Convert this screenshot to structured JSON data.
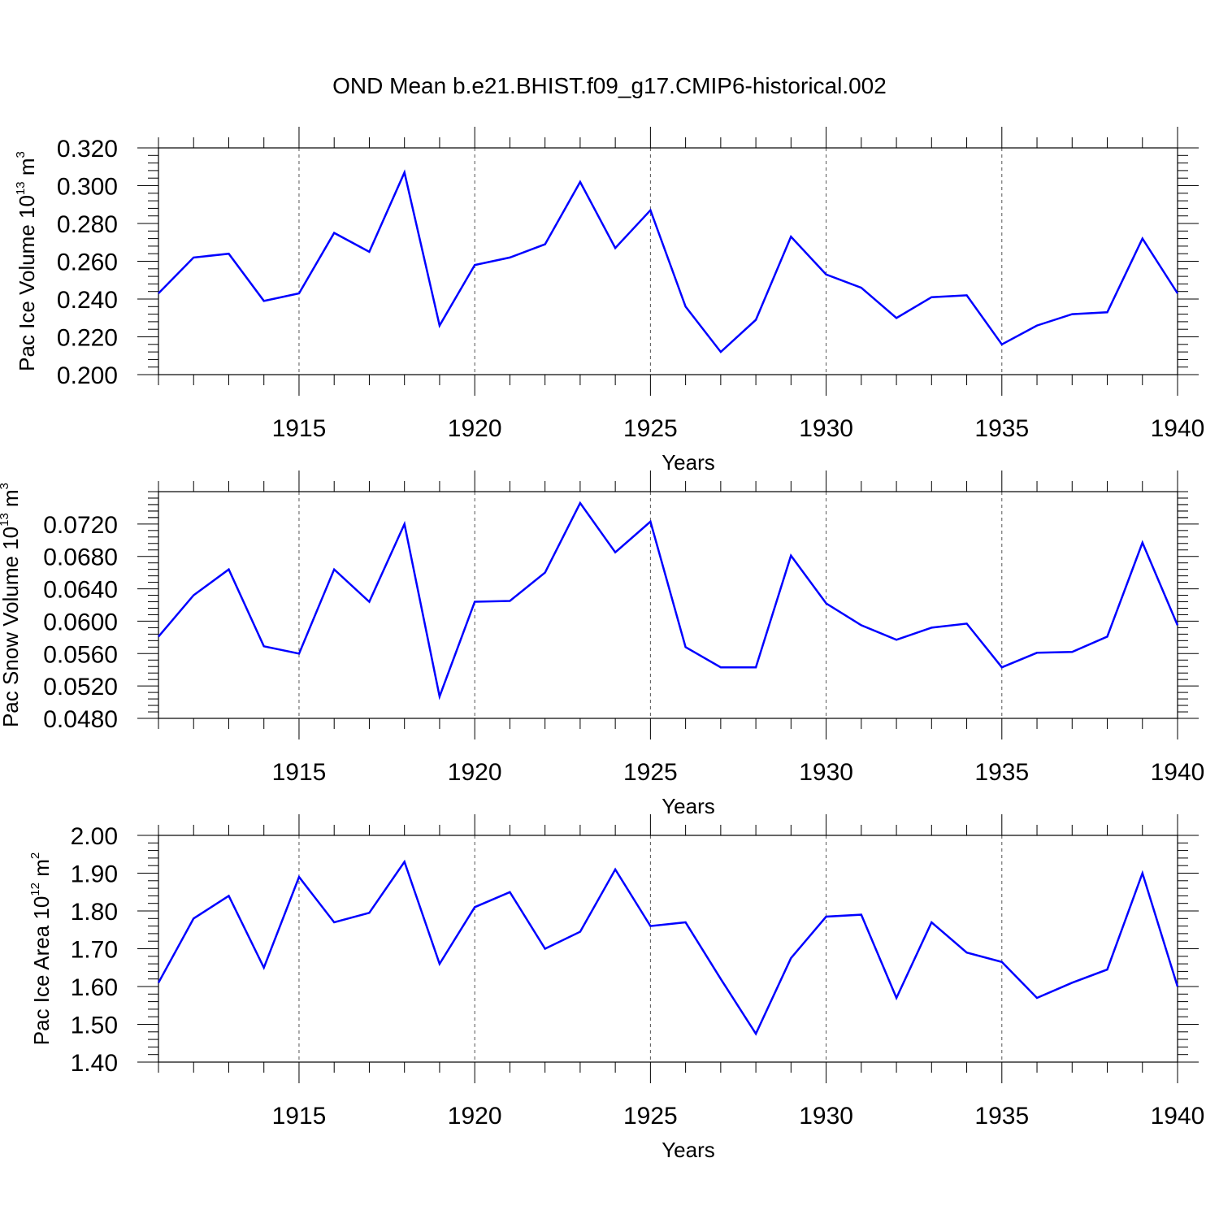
{
  "title": "OND Mean b.e21.BHIST.f09_g17.CMIP6-historical.002",
  "chart_data": [
    {
      "type": "line",
      "ylabel": "Pac Ice Volume 10",
      "ylabel_exp": "13",
      "ylabel_unit": " m",
      "ylabel_unit_exp": "3",
      "xlabel": "Years",
      "xlim": [
        1911,
        1940
      ],
      "ylim": [
        0.2,
        0.32
      ],
      "yticks": [
        0.2,
        0.22,
        0.24,
        0.26,
        0.28,
        0.3,
        0.32
      ],
      "ytick_labels": [
        "0.200",
        "0.220",
        "0.240",
        "0.260",
        "0.280",
        "0.300",
        "0.320"
      ],
      "xticks": [
        1915,
        1920,
        1925,
        1930,
        1935,
        1940
      ],
      "xtick_labels": [
        "1915",
        "1920",
        "1925",
        "1930",
        "1935",
        "1940"
      ],
      "color": "#0000ff",
      "grid": "vertical dashed at major x ticks",
      "x": [
        1911,
        1912,
        1913,
        1914,
        1915,
        1916,
        1917,
        1918,
        1919,
        1920,
        1921,
        1922,
        1923,
        1924,
        1925,
        1926,
        1927,
        1928,
        1929,
        1930,
        1931,
        1932,
        1933,
        1934,
        1935,
        1936,
        1937,
        1938,
        1939,
        1940
      ],
      "values": [
        0.243,
        0.262,
        0.264,
        0.239,
        0.243,
        0.275,
        0.265,
        0.307,
        0.226,
        0.258,
        0.262,
        0.269,
        0.302,
        0.267,
        0.287,
        0.236,
        0.212,
        0.229,
        0.273,
        0.253,
        0.246,
        0.23,
        0.241,
        0.242,
        0.216,
        0.226,
        0.232,
        0.233,
        0.272,
        0.243
      ]
    },
    {
      "type": "line",
      "ylabel": "Pac Snow Volume 10",
      "ylabel_exp": "13",
      "ylabel_unit": " m",
      "ylabel_unit_exp": "3",
      "xlabel": "Years",
      "xlim": [
        1911,
        1940
      ],
      "ylim": [
        0.048,
        0.076
      ],
      "yticks": [
        0.048,
        0.052,
        0.056,
        0.06,
        0.064,
        0.068,
        0.072
      ],
      "ytick_labels": [
        "0.0480",
        "0.0520",
        "0.0560",
        "0.0600",
        "0.0640",
        "0.0680",
        "0.0720"
      ],
      "xticks": [
        1915,
        1920,
        1925,
        1930,
        1935,
        1940
      ],
      "xtick_labels": [
        "1915",
        "1920",
        "1925",
        "1930",
        "1935",
        "1940"
      ],
      "color": "#0000ff",
      "grid": "vertical dashed at major x ticks",
      "x": [
        1911,
        1912,
        1913,
        1914,
        1915,
        1916,
        1917,
        1918,
        1919,
        1920,
        1921,
        1922,
        1923,
        1924,
        1925,
        1926,
        1927,
        1928,
        1929,
        1930,
        1931,
        1932,
        1933,
        1934,
        1935,
        1936,
        1937,
        1938,
        1939,
        1940
      ],
      "values": [
        0.0581,
        0.0632,
        0.0664,
        0.0569,
        0.056,
        0.0664,
        0.0624,
        0.072,
        0.0507,
        0.0624,
        0.0625,
        0.066,
        0.0746,
        0.0685,
        0.0723,
        0.0568,
        0.0543,
        0.0543,
        0.0681,
        0.0622,
        0.0595,
        0.0577,
        0.0592,
        0.0597,
        0.0543,
        0.0561,
        0.0562,
        0.0581,
        0.0697,
        0.0595
      ]
    },
    {
      "type": "line",
      "ylabel": "Pac Ice Area 10",
      "ylabel_exp": "12",
      "ylabel_unit": " m",
      "ylabel_unit_exp": "2",
      "xlabel": "Years",
      "xlim": [
        1911,
        1940
      ],
      "ylim": [
        1.4,
        2.0
      ],
      "yticks": [
        1.4,
        1.5,
        1.6,
        1.7,
        1.8,
        1.9,
        2.0
      ],
      "ytick_labels": [
        "1.40",
        "1.50",
        "1.60",
        "1.70",
        "1.80",
        "1.90",
        "2.00"
      ],
      "xticks": [
        1915,
        1920,
        1925,
        1930,
        1935,
        1940
      ],
      "xtick_labels": [
        "1915",
        "1920",
        "1925",
        "1930",
        "1935",
        "1940"
      ],
      "color": "#0000ff",
      "grid": "vertical dashed at major x ticks",
      "x": [
        1911,
        1912,
        1913,
        1914,
        1915,
        1916,
        1917,
        1918,
        1919,
        1920,
        1921,
        1922,
        1923,
        1924,
        1925,
        1926,
        1927,
        1928,
        1929,
        1930,
        1931,
        1932,
        1933,
        1934,
        1935,
        1936,
        1937,
        1938,
        1939,
        1940
      ],
      "values": [
        1.61,
        1.78,
        1.84,
        1.65,
        1.89,
        1.77,
        1.795,
        1.93,
        1.66,
        1.81,
        1.85,
        1.7,
        1.745,
        1.91,
        1.76,
        1.77,
        1.62,
        1.475,
        1.675,
        1.785,
        1.79,
        1.57,
        1.77,
        1.69,
        1.665,
        1.57,
        1.61,
        1.645,
        1.9,
        1.6
      ]
    }
  ]
}
